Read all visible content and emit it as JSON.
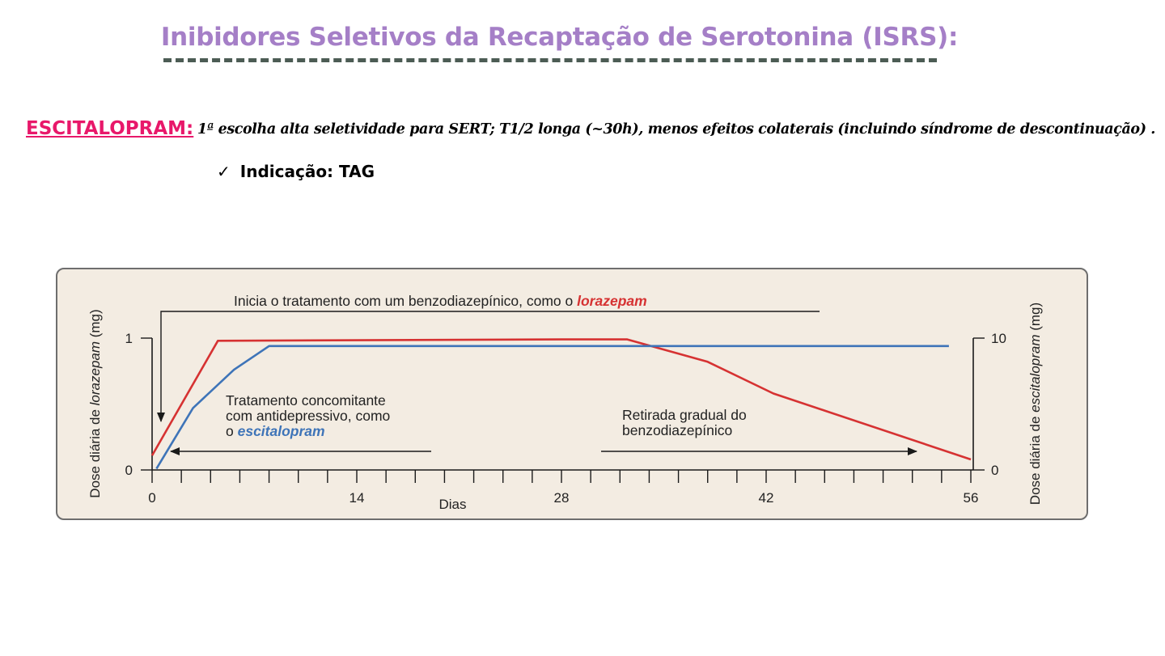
{
  "slide": {
    "title": "Inibidores Seletivos da Recaptação de Serotonina (ISRS):",
    "drug_name": "ESCITALOPRAM:",
    "drug_description": "1ª escolha alta seletividade para SERT; T1/2 longa (~30h), menos efeitos colaterais (incluindo síndrome de descontinuação) .",
    "indication_check": "✓",
    "indication": "Indicação: TAG"
  },
  "colors": {
    "title": "#a57fc7",
    "drug_name": "#e8186a",
    "lorazepam": "#d63232",
    "escitalopram": "#3e74b8",
    "panel_background": "#f3ece2"
  },
  "chart_data": {
    "type": "line",
    "xlabel": "Dias",
    "ylabel_left": [
      "Dose diária de ",
      "lorazepam",
      " (mg)"
    ],
    "ylabel_right": [
      "Dose diária de ",
      "escitalopram",
      " (mg)"
    ],
    "x_ticks": [
      0,
      14,
      28,
      42,
      56
    ],
    "x_minor_step": 2,
    "xlim": [
      0,
      56
    ],
    "ylim_left": [
      0,
      1
    ],
    "ylim_right": [
      0,
      10
    ],
    "y_ticks_left": [
      0,
      1
    ],
    "y_ticks_right": [
      0,
      10
    ],
    "grid": false,
    "series": [
      {
        "name": "lorazepam",
        "axis": "left",
        "color": "#d63232",
        "points": [
          [
            0,
            0.11
          ],
          [
            4.5,
            0.98
          ],
          [
            28,
            0.99
          ],
          [
            32.5,
            0.99
          ],
          [
            38,
            0.82
          ],
          [
            42.5,
            0.58
          ],
          [
            56,
            0.08
          ]
        ]
      },
      {
        "name": "escitalopram",
        "axis": "right",
        "color": "#3e74b8",
        "points": [
          [
            0.3,
            0.1
          ],
          [
            2.8,
            4.7
          ],
          [
            5.6,
            7.6
          ],
          [
            8,
            9.4
          ],
          [
            54.5,
            9.4
          ]
        ]
      }
    ],
    "annotations": {
      "start": {
        "prefix": "Inicia o tratamento com um benzodiazepínico, como o ",
        "drug": "lorazepam"
      },
      "concomitant": {
        "line1": "Tratamento concomitante",
        "line2": "com antidepressivo, como",
        "line3_prefix": "o ",
        "drug": "escitalopram"
      },
      "withdrawal": {
        "line1": "Retirada gradual do",
        "line2": "benzodiazepínico"
      }
    }
  }
}
